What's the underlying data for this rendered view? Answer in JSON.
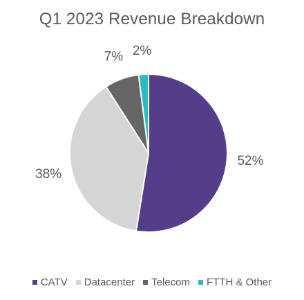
{
  "chart_data": {
    "type": "pie",
    "title": "Q1 2023 Revenue Breakdown",
    "categories": [
      "CATV",
      "Datacenter",
      "Telecom",
      "FTTH & Other"
    ],
    "values": [
      52,
      38,
      7,
      2
    ],
    "data_labels": [
      "52%",
      "38%",
      "7%",
      "2%"
    ],
    "colors": [
      "#563D8A",
      "#D5D5D5",
      "#666666",
      "#2BBBC4"
    ],
    "start_angle_deg": 0,
    "direction": "clockwise",
    "legend_position": "bottom"
  }
}
